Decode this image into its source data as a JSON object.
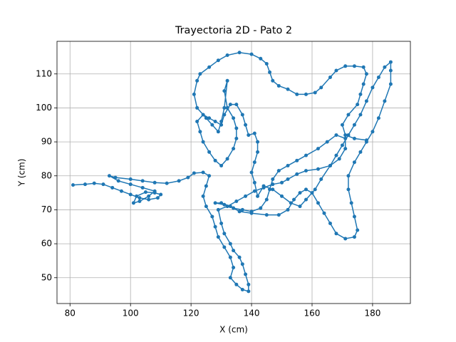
{
  "chart_data": {
    "type": "line",
    "title": "Trayectoria 2D - Pato 2",
    "x_label": "X (cm)",
    "y_label": "Y (cm)",
    "color": "#1f77b4",
    "grid": true,
    "x": [
      81,
      85,
      88,
      91,
      94,
      97,
      100,
      103,
      106,
      109,
      110,
      108,
      105,
      102,
      101,
      103,
      106,
      108,
      104,
      100,
      96,
      93,
      95,
      100,
      104,
      108,
      112,
      116,
      119,
      121,
      124,
      126,
      125,
      124,
      125,
      127,
      128,
      129,
      131,
      133,
      134,
      133,
      135,
      137,
      139,
      139,
      138,
      137,
      136,
      134,
      133,
      131,
      130,
      129,
      132,
      135,
      138,
      141,
      144,
      147,
      150,
      152,
      155,
      158,
      162,
      166,
      169,
      171,
      171,
      168,
      165,
      162,
      158,
      155,
      152,
      149,
      147,
      146,
      145,
      143,
      140,
      137,
      134,
      131,
      128,
      130,
      133,
      136,
      140,
      145,
      149,
      152,
      154,
      156,
      158,
      160,
      162,
      164,
      166,
      168,
      171,
      174,
      175,
      174,
      173,
      172,
      172,
      174,
      176,
      178,
      180,
      182,
      184,
      186,
      186,
      186,
      184,
      182,
      180,
      178,
      176,
      174,
      172,
      170,
      168,
      166,
      163,
      161,
      158,
      156,
      153,
      150,
      147,
      144,
      142,
      141,
      140,
      141,
      142,
      142,
      141,
      139,
      138,
      137,
      135,
      133,
      131,
      130,
      128,
      126,
      124,
      122,
      123,
      124,
      126,
      128,
      130,
      132,
      134,
      135,
      135,
      134,
      132,
      131,
      132,
      131,
      130,
      129,
      127,
      125,
      122,
      121,
      122,
      123,
      126,
      129,
      132,
      136,
      140,
      143,
      145,
      146,
      147,
      149,
      152,
      155,
      158,
      161,
      163,
      166,
      168,
      171,
      174,
      177,
      178,
      177,
      176,
      175,
      172,
      170,
      171,
      174,
      178
    ],
    "values": [
      77.3,
      77.5,
      77.8,
      77.5,
      76.5,
      75.5,
      74.5,
      73.5,
      73,
      73.5,
      74.5,
      75,
      75.2,
      74,
      72,
      72.5,
      74,
      75.5,
      76.5,
      77.5,
      78.5,
      80,
      79.5,
      79,
      78.5,
      78,
      77.8,
      78.5,
      79.5,
      80.8,
      81,
      80,
      77,
      74,
      71,
      68,
      65,
      62,
      59,
      56,
      53,
      50,
      48,
      46.5,
      46,
      48,
      51,
      54,
      56,
      58,
      60,
      63,
      66,
      70,
      71,
      72.5,
      74,
      75.5,
      76.5,
      77.5,
      78,
      79,
      80.5,
      81.5,
      82,
      83,
      85,
      88,
      91,
      92,
      90,
      88,
      86,
      84.5,
      83,
      81.5,
      79,
      76,
      73,
      70.5,
      69.5,
      70,
      70.5,
      71.5,
      72,
      72,
      71,
      69.5,
      69,
      68.5,
      68.5,
      70,
      73,
      75,
      76,
      75,
      72,
      69,
      66,
      63,
      61.5,
      62,
      64,
      68,
      72,
      76,
      80,
      84,
      87,
      90,
      93,
      97,
      102,
      107,
      111,
      113.5,
      112,
      109,
      106,
      102,
      98,
      95,
      92,
      89,
      86,
      83,
      79,
      76,
      73,
      71,
      72,
      74,
      76,
      77,
      74,
      78,
      81,
      84,
      87,
      90,
      92.5,
      92,
      95,
      98,
      101,
      101,
      98,
      95,
      96,
      97,
      98,
      96,
      93,
      90,
      87,
      84.5,
      83,
      85,
      88,
      91,
      94,
      97,
      100,
      105,
      108,
      100,
      96,
      93,
      95,
      97,
      100,
      104,
      108,
      110,
      112,
      114,
      115.5,
      116.3,
      115.8,
      114.5,
      113,
      110.5,
      108,
      106.5,
      105.5,
      104,
      104,
      104.5,
      106,
      109,
      111,
      112.3,
      112.3,
      112,
      110,
      107,
      104,
      101,
      98,
      95,
      92,
      91,
      90.5
    ],
    "xlim": [
      75.7,
      192.5
    ],
    "ylim": [
      42.4,
      119.6
    ],
    "xticks": [
      80,
      100,
      120,
      140,
      160,
      180
    ],
    "yticks": [
      50,
      60,
      70,
      80,
      90,
      100,
      110
    ]
  }
}
